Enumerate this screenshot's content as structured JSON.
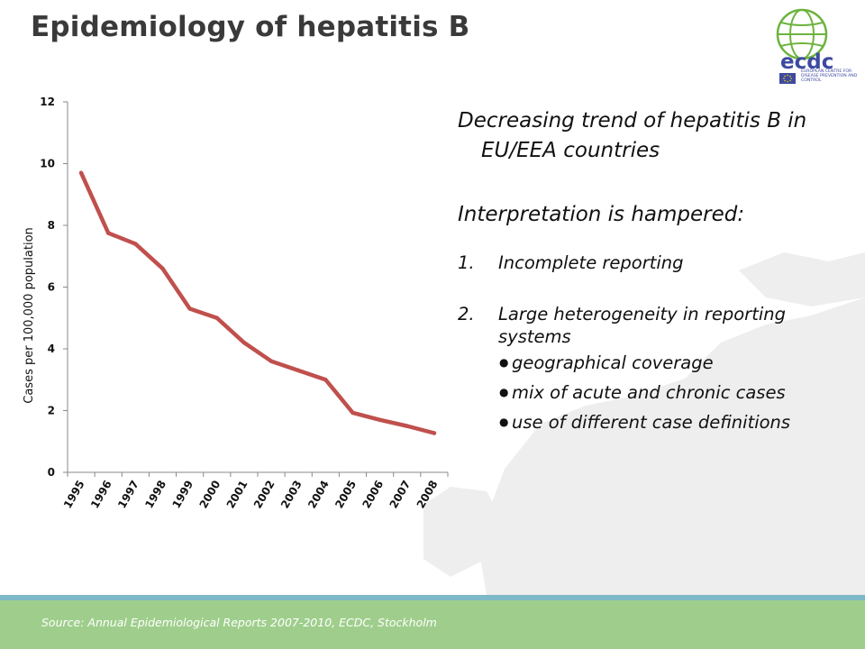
{
  "slide": {
    "title": "Epidemiology of hepatitis B",
    "logo_text": "ecdc",
    "logo_org": "EUROPEAN CENTRE FOR DISEASE PREVENTION AND CONTROL",
    "heading_1": "Decreasing trend of hepatitis B in EU/EEA countries",
    "heading_2": "Interpretation is hampered:",
    "points": [
      {
        "number": "1.",
        "text": "Incomplete reporting"
      },
      {
        "number": "2.",
        "text": "Large heterogeneity in reporting systems"
      }
    ],
    "sub_points": [
      "geographical coverage",
      "mix of acute and chronic cases",
      "use of different case definitions"
    ],
    "source": "Source: Annual Epidemiological Reports 2007-2010, ECDC, Stockholm"
  },
  "colors": {
    "title": "#3a3a3a",
    "line": "#c0504d",
    "footer": "#9fce8c",
    "logo_green": "#6db33f",
    "logo_blue": "#3d4aa0"
  },
  "chart_data": {
    "type": "line",
    "title": "",
    "xlabel": "",
    "ylabel": "Cases per 100,000 population",
    "categories": [
      "1995",
      "1996",
      "1997",
      "1998",
      "1999",
      "2000",
      "2001",
      "2002",
      "2003",
      "2004",
      "2005",
      "2006",
      "2007",
      "2008"
    ],
    "series": [
      {
        "values": [
          9.7,
          7.75,
          7.4,
          6.6,
          5.3,
          5.0,
          4.2,
          3.6,
          3.3,
          3.0,
          1.93,
          1.7,
          1.5,
          1.27
        ]
      }
    ],
    "ylim": [
      0,
      12
    ],
    "yticks": [
      0,
      2,
      4,
      6,
      8,
      10,
      12
    ],
    "grid": false,
    "legend": "none"
  }
}
